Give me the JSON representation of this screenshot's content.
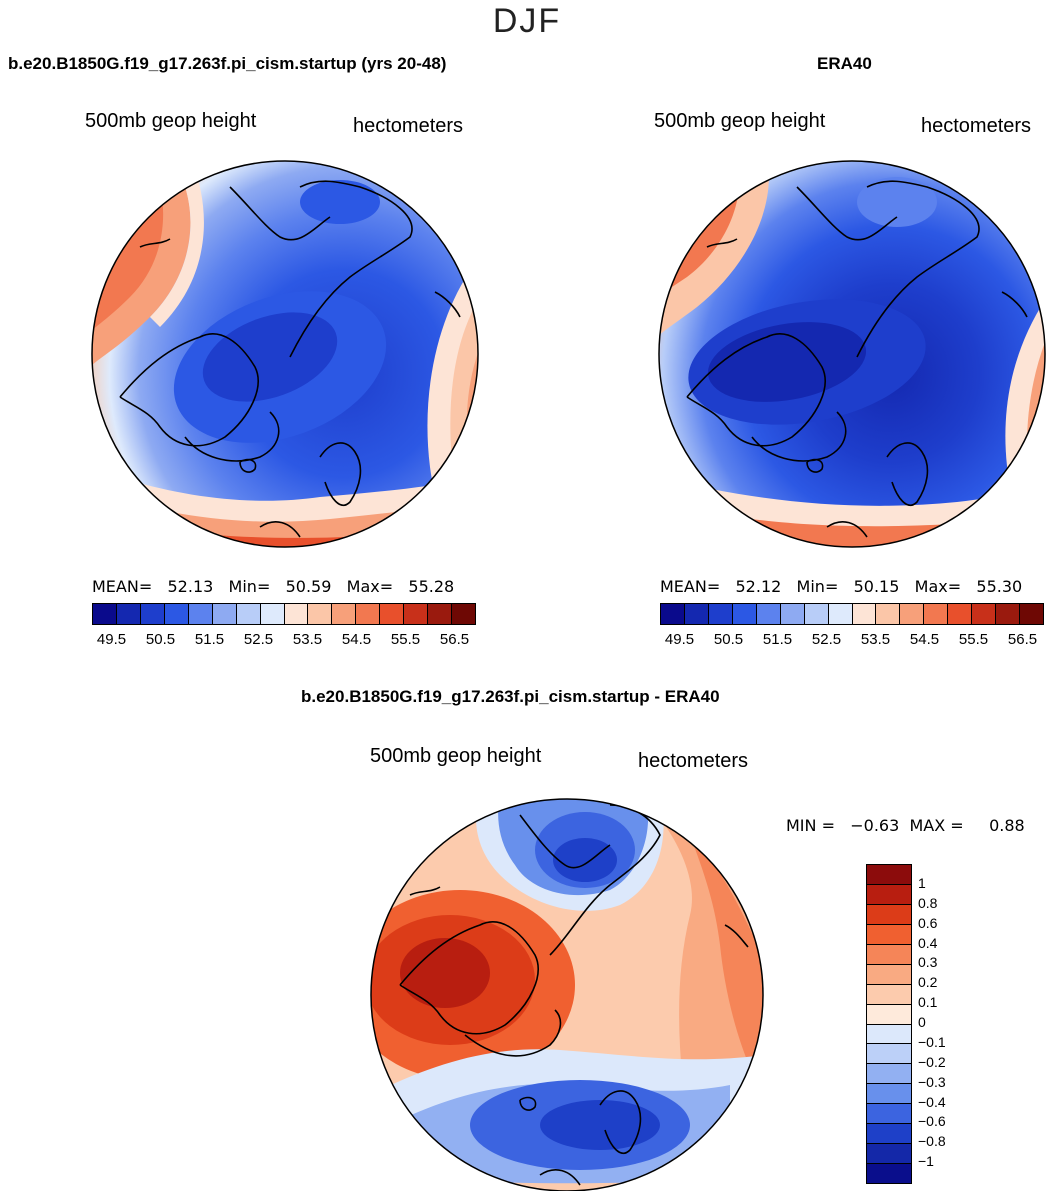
{
  "season": "DJF",
  "panels": [
    {
      "title": "b.e20.B1850G.f19_g17.263f.pi_cism.startup (yrs 20-48)",
      "left_label": "500mb  geop height",
      "right_label": "hectometers",
      "stats": "MEAN=   52.13   Min=   50.59   Max=   55.28"
    },
    {
      "title": "ERA40",
      "left_label": "500mb  geop height",
      "right_label": "hectometers",
      "stats": "MEAN=   52.12   Min=   50.15   Max=   55.30"
    },
    {
      "title": "b.e20.B1850G.f19_g17.263f.pi_cism.startup - ERA40",
      "left_label": "500mb  geop height",
      "right_label": "hectometers",
      "stats": "MIN =   −0.63  MAX =     0.88"
    }
  ],
  "colorbar_top": {
    "colors": [
      "#0a0a8c",
      "#1428b0",
      "#1e3ecc",
      "#2c58e4",
      "#5c82ee",
      "#8eaaf2",
      "#b8cdf8",
      "#deeafc",
      "#fde4d6",
      "#fbc6a8",
      "#f7a07a",
      "#f27850",
      "#e8502c",
      "#c8301a",
      "#9a1a0e",
      "#6e0804"
    ],
    "ticks": [
      "49.5",
      "50.5",
      "51.5",
      "52.5",
      "53.5",
      "54.5",
      "55.5",
      "56.5"
    ]
  },
  "colorbar_diff": {
    "colors": [
      "#8c0c0c",
      "#b81e10",
      "#dc3c18",
      "#f06030",
      "#f58558",
      "#f9aa82",
      "#fccbad",
      "#feeadb",
      "#dce8fb",
      "#bcd0f8",
      "#92b0f2",
      "#6890ec",
      "#3c64e0",
      "#1e40c8",
      "#1428a8",
      "#0a0e8c"
    ],
    "ticks": [
      "1",
      "0.8",
      "0.6",
      "0.4",
      "0.3",
      "0.2",
      "0.1",
      "0",
      "−0.1",
      "−0.2",
      "−0.3",
      "−0.4",
      "−0.6",
      "−0.8",
      "−1"
    ]
  }
}
